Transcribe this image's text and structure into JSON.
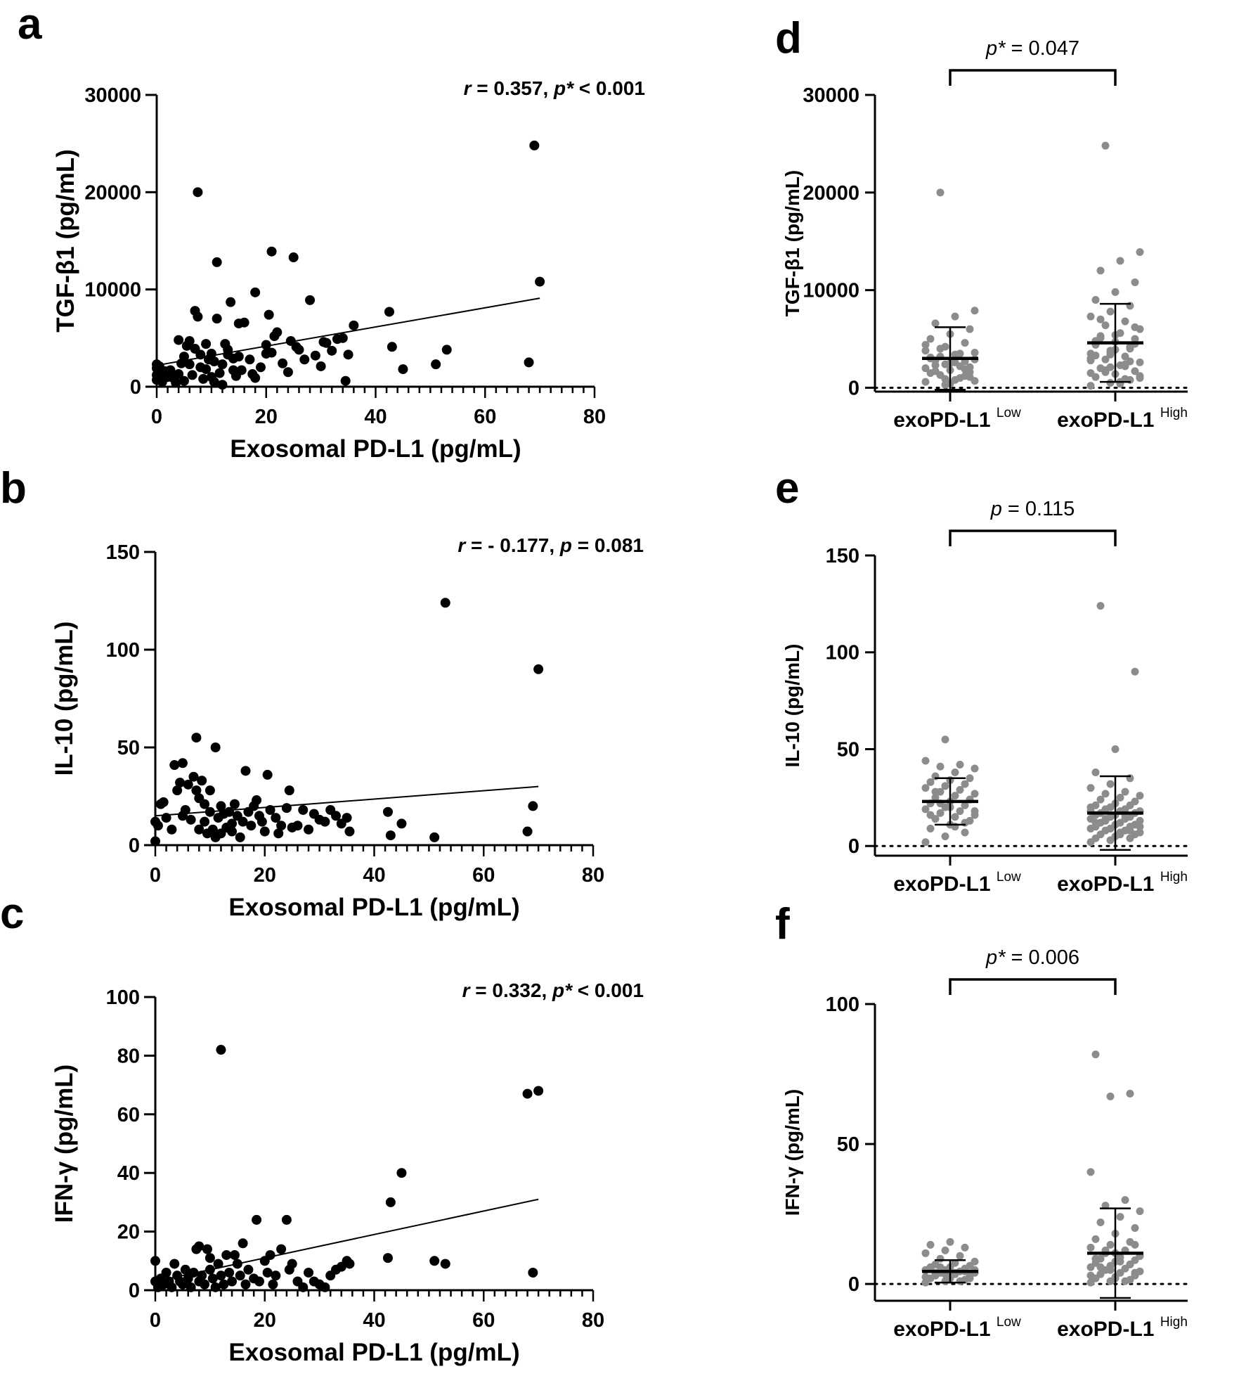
{
  "figure": {
    "scatter_xlabel": "Exosomal PD-L1 (pg/mL)",
    "group_label_base": "exoPD-L1",
    "group_low_sup": "Low",
    "group_high_sup": "High"
  },
  "colors": {
    "scatter_point": "#000000",
    "group_point": "#8c8c8c",
    "axis": "#000000"
  },
  "chart_data": [
    {
      "panel": "a",
      "type": "scatter",
      "ylabel": "TGF-β1 (pg/mL)",
      "xlabel": "Exosomal PD-L1 (pg/mL)",
      "xlim": [
        0,
        80
      ],
      "ylim": [
        0,
        30000
      ],
      "xticks": [
        0,
        20,
        40,
        60,
        80
      ],
      "yticks": [
        0,
        10000,
        20000,
        30000
      ],
      "stat": {
        "r_label": "r",
        "r_value": " = 0.357, ",
        "p_label": "p*",
        "p_value": " < 0.001"
      },
      "fit": {
        "x": [
          0,
          70
        ],
        "y": [
          2200,
          9100
        ]
      },
      "points": [
        [
          0,
          2300
        ],
        [
          0,
          1900
        ],
        [
          0,
          1200
        ],
        [
          0,
          700
        ],
        [
          0.5,
          2100
        ],
        [
          1,
          1400
        ],
        [
          1,
          500
        ],
        [
          1.5,
          1600
        ],
        [
          2,
          1000
        ],
        [
          2.5,
          1700
        ],
        [
          3,
          900
        ],
        [
          3.5,
          400
        ],
        [
          4,
          4800
        ],
        [
          4,
          1300
        ],
        [
          4.5,
          2400
        ],
        [
          5,
          3100
        ],
        [
          5,
          600
        ],
        [
          5.5,
          4200
        ],
        [
          6,
          2300
        ],
        [
          6,
          4700
        ],
        [
          6.5,
          1200
        ],
        [
          7,
          3900
        ],
        [
          7,
          7800
        ],
        [
          7.5,
          20000
        ],
        [
          7.5,
          7200
        ],
        [
          8,
          3300
        ],
        [
          8,
          2000
        ],
        [
          8.5,
          800
        ],
        [
          9,
          4400
        ],
        [
          9,
          1800
        ],
        [
          9.5,
          2800
        ],
        [
          10,
          1000
        ],
        [
          10,
          3400
        ],
        [
          10.5,
          500
        ],
        [
          10.5,
          2600
        ],
        [
          11,
          7000
        ],
        [
          11,
          12800
        ],
        [
          11.5,
          1400
        ],
        [
          12,
          200
        ],
        [
          12,
          2300
        ],
        [
          12.5,
          4400
        ],
        [
          13,
          3300
        ],
        [
          13,
          3800
        ],
        [
          13.5,
          8700
        ],
        [
          14,
          1700
        ],
        [
          14,
          2900
        ],
        [
          14.5,
          1100
        ],
        [
          15,
          6500
        ],
        [
          15,
          3100
        ],
        [
          15.5,
          1700
        ],
        [
          16,
          6600
        ],
        [
          17,
          2800
        ],
        [
          17.5,
          1300
        ],
        [
          18,
          9700
        ],
        [
          18,
          900
        ],
        [
          19,
          2000
        ],
        [
          20,
          4300
        ],
        [
          20,
          3400
        ],
        [
          20.5,
          7400
        ],
        [
          21,
          13900
        ],
        [
          21,
          3500
        ],
        [
          21.5,
          5200
        ],
        [
          22,
          5600
        ],
        [
          23,
          2400
        ],
        [
          24,
          1500
        ],
        [
          24.5,
          4700
        ],
        [
          25,
          13300
        ],
        [
          25.5,
          4100
        ],
        [
          26,
          3800
        ],
        [
          27,
          2800
        ],
        [
          28,
          8900
        ],
        [
          29,
          3200
        ],
        [
          30,
          2100
        ],
        [
          30.5,
          4600
        ],
        [
          31,
          4500
        ],
        [
          32,
          3700
        ],
        [
          33,
          4900
        ],
        [
          34,
          5000
        ],
        [
          35,
          3300
        ],
        [
          36,
          6300
        ],
        [
          34.5,
          600
        ],
        [
          42.5,
          7700
        ],
        [
          43,
          4100
        ],
        [
          45,
          1800
        ],
        [
          51,
          2300
        ],
        [
          53,
          3800
        ],
        [
          68,
          2500
        ],
        [
          69,
          24800
        ],
        [
          70,
          10800
        ]
      ]
    },
    {
      "panel": "b",
      "type": "scatter",
      "ylabel": "IL-10 (pg/mL)",
      "xlabel": "Exosomal PD-L1 (pg/mL)",
      "xlim": [
        0,
        80
      ],
      "ylim": [
        0,
        150
      ],
      "xticks": [
        0,
        20,
        40,
        60,
        80
      ],
      "yticks": [
        0,
        50,
        100,
        150
      ],
      "stat": {
        "r_label": "r",
        "r_value": " = - 0.177, ",
        "p_label": "p",
        "p_value": " = 0.081"
      },
      "fit": {
        "x": [
          0,
          70
        ],
        "y": [
          15,
          30
        ]
      },
      "points": [
        [
          0,
          2
        ],
        [
          0,
          12
        ],
        [
          0.5,
          10
        ],
        [
          1,
          21
        ],
        [
          1.5,
          22
        ],
        [
          2,
          14
        ],
        [
          3,
          8
        ],
        [
          3.5,
          41
        ],
        [
          4,
          28
        ],
        [
          4.5,
          32
        ],
        [
          5,
          42
        ],
        [
          5,
          15
        ],
        [
          5.5,
          18
        ],
        [
          6,
          31
        ],
        [
          6.5,
          13
        ],
        [
          7,
          35
        ],
        [
          7.5,
          28
        ],
        [
          7.5,
          55
        ],
        [
          8,
          24
        ],
        [
          8,
          8
        ],
        [
          8.5,
          33
        ],
        [
          9,
          21
        ],
        [
          9,
          12
        ],
        [
          9.5,
          6
        ],
        [
          10,
          17
        ],
        [
          10,
          28
        ],
        [
          10.5,
          8
        ],
        [
          11,
          50
        ],
        [
          11,
          4
        ],
        [
          11.5,
          14
        ],
        [
          12,
          20
        ],
        [
          12,
          6
        ],
        [
          12.5,
          16
        ],
        [
          13,
          9
        ],
        [
          13.5,
          17
        ],
        [
          14,
          7
        ],
        [
          14,
          11
        ],
        [
          14.5,
          21
        ],
        [
          15,
          15
        ],
        [
          15.5,
          4
        ],
        [
          16,
          12
        ],
        [
          16.5,
          38
        ],
        [
          17,
          17
        ],
        [
          17.5,
          10
        ],
        [
          18,
          20
        ],
        [
          18.5,
          23
        ],
        [
          19,
          15
        ],
        [
          19.5,
          12
        ],
        [
          20,
          7
        ],
        [
          20.5,
          36
        ],
        [
          21,
          18
        ],
        [
          22,
          14
        ],
        [
          22.5,
          6
        ],
        [
          23,
          10
        ],
        [
          24,
          19
        ],
        [
          24.5,
          28
        ],
        [
          25,
          9
        ],
        [
          26,
          10
        ],
        [
          27,
          18
        ],
        [
          28,
          8
        ],
        [
          29,
          16
        ],
        [
          30,
          13
        ],
        [
          31,
          12
        ],
        [
          32,
          18
        ],
        [
          33,
          15
        ],
        [
          34,
          11
        ],
        [
          35,
          14
        ],
        [
          35.5,
          7
        ],
        [
          42.5,
          17
        ],
        [
          43,
          5
        ],
        [
          45,
          11
        ],
        [
          51,
          4
        ],
        [
          53,
          124
        ],
        [
          68,
          7
        ],
        [
          69,
          20
        ],
        [
          70,
          90
        ]
      ]
    },
    {
      "panel": "c",
      "type": "scatter",
      "ylabel": "IFN-γ (pg/mL)",
      "xlabel": "Exosomal PD-L1 (pg/mL)",
      "xlim": [
        0,
        80
      ],
      "ylim": [
        0,
        100
      ],
      "xticks": [
        0,
        20,
        40,
        60,
        80
      ],
      "yticks": [
        0,
        20,
        40,
        60,
        80,
        100
      ],
      "stat": {
        "r_label": "r",
        "r_value": " = 0.332, ",
        "p_label": "p*",
        "p_value": " < 0.001"
      },
      "fit": {
        "x": [
          0,
          70
        ],
        "y": [
          3,
          31
        ]
      },
      "points": [
        [
          0,
          10
        ],
        [
          0,
          3
        ],
        [
          0.5,
          1
        ],
        [
          1,
          4
        ],
        [
          1.5,
          2
        ],
        [
          2,
          6
        ],
        [
          2.5,
          3
        ],
        [
          3,
          1
        ],
        [
          3.5,
          9
        ],
        [
          4,
          5
        ],
        [
          4.5,
          3
        ],
        [
          5,
          2
        ],
        [
          5.5,
          7
        ],
        [
          6,
          4
        ],
        [
          6.5,
          1
        ],
        [
          7,
          6
        ],
        [
          7.5,
          14
        ],
        [
          8,
          15
        ],
        [
          8,
          3
        ],
        [
          8.5,
          5
        ],
        [
          9,
          2
        ],
        [
          9.5,
          14
        ],
        [
          10,
          11
        ],
        [
          10,
          7
        ],
        [
          10.5,
          4
        ],
        [
          11,
          1
        ],
        [
          11.5,
          9
        ],
        [
          12,
          82
        ],
        [
          12,
          5
        ],
        [
          12.5,
          2
        ],
        [
          13,
          12
        ],
        [
          13.5,
          6
        ],
        [
          14,
          3
        ],
        [
          14.5,
          12
        ],
        [
          15,
          9
        ],
        [
          15.5,
          5
        ],
        [
          16,
          16
        ],
        [
          16.5,
          2
        ],
        [
          17,
          7
        ],
        [
          18,
          4
        ],
        [
          18.5,
          24
        ],
        [
          19,
          3
        ],
        [
          20,
          10
        ],
        [
          20.5,
          6
        ],
        [
          21,
          12
        ],
        [
          21.5,
          2
        ],
        [
          22,
          5
        ],
        [
          23,
          14
        ],
        [
          24,
          24
        ],
        [
          24.5,
          7
        ],
        [
          25,
          9
        ],
        [
          26,
          3
        ],
        [
          27,
          1
        ],
        [
          28,
          6
        ],
        [
          29,
          3
        ],
        [
          30,
          2
        ],
        [
          31,
          1
        ],
        [
          32,
          5
        ],
        [
          33,
          7
        ],
        [
          34,
          8
        ],
        [
          35,
          10
        ],
        [
          35.5,
          9
        ],
        [
          42.5,
          11
        ],
        [
          43,
          30
        ],
        [
          45,
          40
        ],
        [
          51,
          10
        ],
        [
          53,
          9
        ],
        [
          68,
          67
        ],
        [
          69,
          6
        ],
        [
          70,
          68
        ]
      ]
    },
    {
      "panel": "d",
      "type": "scatter",
      "ylabel": "TGF-β1 (pg/mL)",
      "ylim": [
        -400,
        30000
      ],
      "yticks": [
        0,
        10000,
        20000,
        30000
      ],
      "categories": [
        "exoPD-L1 Low",
        "exoPD-L1 High"
      ],
      "stat": {
        "p_label": "p*",
        "p_value": " = 0.047"
      },
      "summary": [
        {
          "mean": 3000,
          "sd": 3200
        },
        {
          "mean": 4600,
          "sd": 4000
        }
      ],
      "groups": [
        [
          600,
          900,
          1200,
          1500,
          1800,
          2100,
          2300,
          2600,
          2900,
          3200,
          3500,
          3800,
          4200,
          4600,
          5000,
          5500,
          6000,
          6600,
          7300,
          7900,
          20000,
          1000,
          2000,
          2400,
          2700,
          3100,
          400,
          1600,
          2800,
          3400,
          700,
          1300,
          2200,
          4400,
          300,
          1900,
          3000,
          2500,
          1100,
          1700,
          800,
          3600,
          4000
        ],
        [
          200,
          500,
          800,
          1100,
          1400,
          1700,
          2000,
          2300,
          2600,
          2900,
          3200,
          3500,
          3800,
          4100,
          4400,
          4700,
          5000,
          5300,
          5600,
          6000,
          6400,
          6800,
          7300,
          7800,
          8400,
          9000,
          9800,
          10800,
          12000,
          13000,
          13900,
          24800,
          900,
          1500,
          2100,
          2700,
          3300,
          3900,
          4500,
          5100,
          600,
          1200,
          1800,
          2400,
          3000,
          3600,
          4200,
          4800,
          5400,
          6200,
          7000,
          400,
          1000,
          1600,
          2200,
          2800,
          3400,
          4000,
          4600
        ]
      ]
    },
    {
      "panel": "e",
      "type": "scatter",
      "ylabel": "IL-10 (pg/mL)",
      "ylim": [
        -5,
        150
      ],
      "yticks": [
        0,
        50,
        100,
        150
      ],
      "categories": [
        "exoPD-L1 Low",
        "exoPD-L1 High"
      ],
      "stat": {
        "p_label": "p",
        "p_value": " = 0.115"
      },
      "summary": [
        {
          "mean": 23,
          "sd": 12
        },
        {
          "mean": 17,
          "sd": 19
        }
      ],
      "groups": [
        [
          2,
          5,
          7,
          9,
          11,
          13,
          14,
          15,
          16,
          17,
          18,
          19,
          20,
          21,
          22,
          23,
          24,
          25,
          26,
          27,
          28,
          29,
          30,
          31,
          32,
          33,
          34,
          35,
          36,
          38,
          40,
          41,
          42,
          44,
          55,
          12,
          16,
          20,
          24,
          28,
          10,
          18,
          22
        ],
        [
          2,
          3,
          4,
          4,
          5,
          6,
          6,
          7,
          7,
          8,
          8,
          9,
          9,
          10,
          10,
          11,
          11,
          12,
          12,
          13,
          13,
          14,
          14,
          15,
          15,
          16,
          16,
          17,
          17,
          18,
          18,
          19,
          19,
          20,
          20,
          21,
          21,
          22,
          23,
          24,
          25,
          26,
          27,
          28,
          30,
          32,
          35,
          38,
          50,
          90,
          124,
          6,
          10,
          14,
          16,
          18,
          20,
          8,
          12
        ]
      ]
    },
    {
      "panel": "f",
      "type": "scatter",
      "ylabel": "IFN-γ (pg/mL)",
      "ylim": [
        -6,
        100
      ],
      "yticks": [
        0,
        50,
        100
      ],
      "categories": [
        "exoPD-L1 Low",
        "exoPD-L1 High"
      ],
      "stat": {
        "p_label": "p*",
        "p_value": " = 0.006"
      },
      "summary": [
        {
          "mean": 4.5,
          "sd": 4
        },
        {
          "mean": 11,
          "sd": 16
        }
      ],
      "groups": [
        [
          0.5,
          1,
          1.5,
          2,
          2.5,
          3,
          3,
          3.5,
          4,
          4,
          4.5,
          5,
          5,
          5.5,
          6,
          6,
          6.5,
          7,
          7.5,
          8,
          9,
          10,
          11,
          12,
          13,
          14,
          15,
          2,
          3,
          4,
          5,
          6,
          1,
          2.5,
          3.5,
          4.5,
          5.5,
          2,
          3,
          4
        ],
        [
          0.5,
          1,
          1.5,
          2,
          2.5,
          3,
          3.5,
          4,
          4.5,
          5,
          5.5,
          6,
          6.5,
          7,
          7.5,
          8,
          8.5,
          9,
          9.5,
          10,
          11,
          12,
          13,
          14,
          15,
          16,
          18,
          20,
          22,
          24,
          26,
          28,
          30,
          40,
          67,
          68,
          82,
          2,
          4,
          6,
          8,
          10,
          12,
          1,
          3,
          5,
          7,
          9,
          11,
          14
        ]
      ]
    }
  ]
}
